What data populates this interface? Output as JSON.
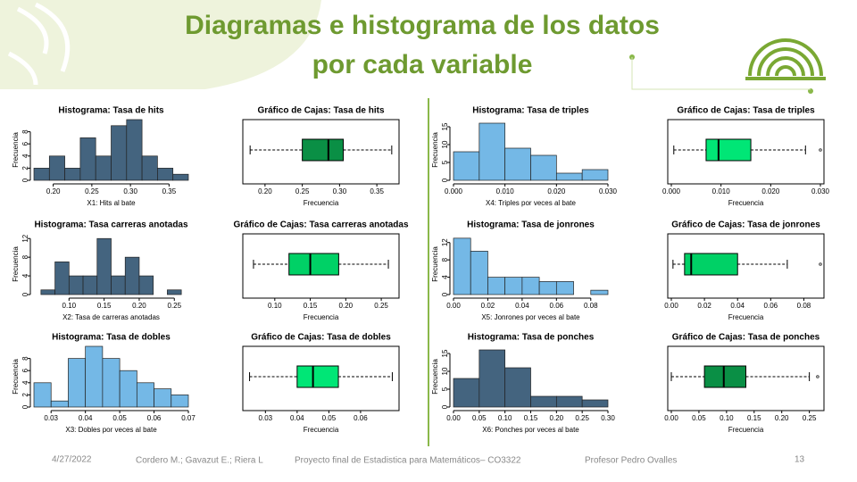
{
  "title": [
    "Diagramas e histograma de los datos",
    "por cada variable"
  ],
  "footer": {
    "date": "4/27/2022",
    "authors": "Cordero M.; Gavazut E.;  Riera L",
    "project": "Proyecto final de Estadistica para Matemáticos– CO3322",
    "professor": "Profesor Pedro Ovalles",
    "page": "13"
  },
  "chart_data": [
    {
      "type": "histogram",
      "title": "Histograma: Tasa de hits",
      "xlabel": "X1: Hits al bate",
      "ylabel": "Frecuencia",
      "color": "#44647f",
      "bins": [
        0.175,
        0.195,
        0.215,
        0.235,
        0.255,
        0.275,
        0.295,
        0.315,
        0.335,
        0.355,
        0.375
      ],
      "counts": [
        2,
        4,
        2,
        7,
        4,
        9,
        10,
        4,
        2,
        1
      ],
      "xlim": [
        0.175,
        0.375
      ],
      "xticks": [
        {
          "value": 0.2,
          "label": "0.20"
        },
        {
          "value": 0.25,
          "label": "0.25"
        },
        {
          "value": 0.3,
          "label": "0.30"
        },
        {
          "value": 0.35,
          "label": "0.35"
        }
      ],
      "ylim": [
        0,
        10
      ],
      "yticks": [
        0,
        2,
        4,
        6,
        8
      ]
    },
    {
      "type": "box",
      "title": "Gráfico de Cajas: Tasa de hits",
      "xlabel": "Frecuencia",
      "color": "#0a8f45",
      "min": 0.18,
      "q1": 0.25,
      "median": 0.285,
      "q3": 0.305,
      "max": 0.37,
      "outliers": [],
      "xlim": [
        0.175,
        0.375
      ],
      "xticks": [
        {
          "value": 0.2,
          "label": "0.20"
        },
        {
          "value": 0.25,
          "label": "0.25"
        },
        {
          "value": 0.3,
          "label": "0.30"
        },
        {
          "value": 0.35,
          "label": "0.35"
        }
      ]
    },
    {
      "type": "histogram",
      "title": "Histograma: Tasa de triples",
      "xlabel": "X4: Triples por veces al bate",
      "ylabel": "Frecuencia",
      "color": "#74b8e6",
      "bins": [
        0,
        0.005,
        0.01,
        0.015,
        0.02,
        0.025,
        0.03
      ],
      "counts": [
        8,
        16,
        9,
        7,
        2,
        3
      ],
      "xlim": [
        0,
        0.03
      ],
      "xticks": [
        {
          "value": 0,
          "label": "0.000"
        },
        {
          "value": 0.01,
          "label": "0.010"
        },
        {
          "value": 0.02,
          "label": "0.020"
        },
        {
          "value": 0.03,
          "label": "0.030"
        }
      ],
      "ylim": [
        0,
        17
      ],
      "yticks": [
        0,
        5,
        10,
        15
      ]
    },
    {
      "type": "box",
      "title": "Gráfico de Cajas: Tasa de triples",
      "xlabel": "Frecuencia",
      "color": "#00e676",
      "min": 0.0005,
      "q1": 0.007,
      "median": 0.0095,
      "q3": 0.016,
      "max": 0.027,
      "outliers": [
        0.03
      ],
      "xlim": [
        0,
        0.03
      ],
      "xticks": [
        {
          "value": 0,
          "label": "0.000"
        },
        {
          "value": 0.01,
          "label": "0.010"
        },
        {
          "value": 0.02,
          "label": "0.020"
        },
        {
          "value": 0.03,
          "label": "0.030"
        }
      ]
    },
    {
      "type": "histogram",
      "title": "Histograma: Tasa carreras anotadas",
      "xlabel": "X2: Tasa de carreras anotadas",
      "ylabel": "Frecuencia",
      "color": "#44647f",
      "bins": [
        0.06,
        0.08,
        0.1,
        0.12,
        0.14,
        0.16,
        0.18,
        0.2,
        0.22,
        0.24,
        0.26
      ],
      "counts": [
        1,
        7,
        4,
        4,
        12,
        4,
        8,
        4,
        0,
        1
      ],
      "xlim": [
        0.05,
        0.27
      ],
      "xticks": [
        {
          "value": 0.1,
          "label": "0.10"
        },
        {
          "value": 0.15,
          "label": "0.15"
        },
        {
          "value": 0.2,
          "label": "0.20"
        },
        {
          "value": 0.25,
          "label": "0.25"
        }
      ],
      "ylim": [
        0,
        13
      ],
      "yticks": [
        0,
        4,
        8,
        12
      ]
    },
    {
      "type": "box",
      "title": "Gráfico de Cajas: Tasa carreras anotadas",
      "xlabel": "Frecuencia",
      "color": "#00d166",
      "min": 0.07,
      "q1": 0.12,
      "median": 0.15,
      "q3": 0.19,
      "max": 0.26,
      "outliers": [],
      "xlim": [
        0.06,
        0.27
      ],
      "xticks": [
        {
          "value": 0.1,
          "label": "0.10"
        },
        {
          "value": 0.15,
          "label": "0.15"
        },
        {
          "value": 0.2,
          "label": "0.20"
        },
        {
          "value": 0.25,
          "label": "0.25"
        }
      ]
    },
    {
      "type": "histogram",
      "title": "Histograma: Tasa de jonrones",
      "xlabel": "X5: Jonrones por veces al bate",
      "ylabel": "Frecuencia",
      "color": "#74b8e6",
      "bins": [
        0,
        0.01,
        0.02,
        0.03,
        0.04,
        0.05,
        0.06,
        0.07,
        0.08,
        0.09
      ],
      "counts": [
        13,
        10,
        4,
        4,
        4,
        3,
        3,
        0,
        1
      ],
      "xlim": [
        0,
        0.09
      ],
      "xticks": [
        {
          "value": 0,
          "label": "0.00"
        },
        {
          "value": 0.02,
          "label": "0.02"
        },
        {
          "value": 0.04,
          "label": "0.04"
        },
        {
          "value": 0.06,
          "label": "0.06"
        },
        {
          "value": 0.08,
          "label": "0.08"
        }
      ],
      "ylim": [
        0,
        14
      ],
      "yticks": [
        0,
        4,
        8,
        12
      ]
    },
    {
      "type": "box",
      "title": "Gráfico de Cajas: Tasa de jonrones",
      "xlabel": "Frecuencia",
      "color": "#00d166",
      "min": 0.001,
      "q1": 0.008,
      "median": 0.012,
      "q3": 0.04,
      "max": 0.07,
      "outliers": [
        0.09
      ],
      "xlim": [
        0,
        0.09
      ],
      "xticks": [
        {
          "value": 0,
          "label": "0.00"
        },
        {
          "value": 0.02,
          "label": "0.02"
        },
        {
          "value": 0.04,
          "label": "0.04"
        },
        {
          "value": 0.06,
          "label": "0.06"
        },
        {
          "value": 0.08,
          "label": "0.08"
        }
      ]
    },
    {
      "type": "histogram",
      "title": "Histograma: Tasa de dobles",
      "xlabel": "X3: Dobles por veces al bate",
      "ylabel": "Frecuencia",
      "color": "#74b8e6",
      "bins": [
        0.025,
        0.03,
        0.035,
        0.04,
        0.045,
        0.05,
        0.055,
        0.06,
        0.065,
        0.07
      ],
      "counts": [
        4,
        1,
        8,
        10,
        8,
        6,
        4,
        3,
        2
      ],
      "xlim": [
        0.025,
        0.07
      ],
      "xticks": [
        0.03,
        0.04,
        0.05,
        0.06,
        0.07
      ],
      "ylim": [
        0,
        10
      ],
      "yticks": [
        0,
        2,
        4,
        6,
        8
      ]
    },
    {
      "type": "box",
      "title": "Gráfico de Cajas: Tasa de dobles",
      "xlabel": "Frecuencia",
      "color": "#00e676",
      "min": 0.025,
      "q1": 0.04,
      "median": 0.045,
      "q3": 0.053,
      "max": 0.07,
      "outliers": [],
      "xlim": [
        0.024,
        0.071
      ],
      "xticks": [
        0.03,
        0.04,
        0.05,
        0.06
      ]
    },
    {
      "type": "histogram",
      "title": "Histograma: Tasa de ponches",
      "xlabel": "X6: Ponches por veces al bate",
      "ylabel": "Frecuencia",
      "color": "#44647f",
      "bins": [
        0,
        0.05,
        0.1,
        0.15,
        0.2,
        0.25,
        0.3
      ],
      "counts": [
        8,
        16,
        11,
        3,
        3,
        2
      ],
      "xlim": [
        0,
        0.3
      ],
      "xticks": [
        {
          "value": 0,
          "label": "0.00"
        },
        {
          "value": 0.05,
          "label": "0.05"
        },
        {
          "value": 0.1,
          "label": "0.10"
        },
        {
          "value": 0.15,
          "label": "0.15"
        },
        {
          "value": 0.2,
          "label": "0.20"
        },
        {
          "value": 0.25,
          "label": "0.25"
        },
        {
          "value": 0.3,
          "label": "0.30"
        }
      ],
      "ylim": [
        0,
        17
      ],
      "yticks": [
        0,
        5,
        10,
        15
      ]
    },
    {
      "type": "box",
      "title": "Gráfico de Cajas: Tasa de ponches",
      "xlabel": "Frecuencia",
      "color": "#0a8f45",
      "min": 0.0,
      "q1": 0.06,
      "median": 0.095,
      "q3": 0.135,
      "max": 0.25,
      "outliers": [
        0.265
      ],
      "xlim": [
        0,
        0.27
      ],
      "xticks": [
        {
          "value": 0,
          "label": "0.00"
        },
        {
          "value": 0.05,
          "label": "0.05"
        },
        {
          "value": 0.1,
          "label": "0.10"
        },
        {
          "value": 0.15,
          "label": "0.15"
        },
        {
          "value": 0.2,
          "label": "0.20"
        },
        {
          "value": 0.25,
          "label": "0.25"
        }
      ]
    }
  ]
}
